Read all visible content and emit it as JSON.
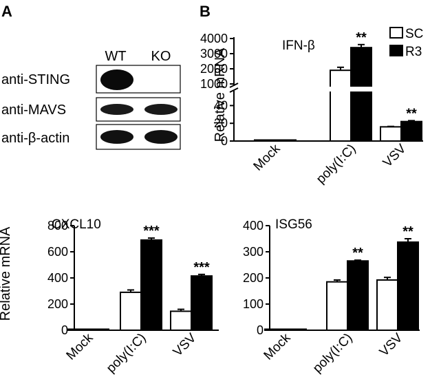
{
  "panels": {
    "a": {
      "letter": "A",
      "lanes": [
        "WT",
        "KO"
      ],
      "rows": [
        {
          "label": "anti-STING",
          "bands": [
            1.0,
            0.0
          ]
        },
        {
          "label": "anti-MAVS",
          "bands": [
            0.8,
            0.8
          ]
        },
        {
          "label": "anti-β-actin",
          "bands": [
            0.9,
            0.9
          ]
        }
      ]
    },
    "b": {
      "letter": "B"
    }
  },
  "chart_data": [
    {
      "type": "bar",
      "title": "IFN-β",
      "ylabel": "Relative mRNA",
      "categories": [
        "Mock",
        "poly(I:C)",
        "VSV"
      ],
      "series": [
        {
          "name": "SC",
          "values": [
            1,
            1900,
            16
          ],
          "errors": [
            0,
            200,
            0.5
          ],
          "color": "#ffffff"
        },
        {
          "name": "R3",
          "values": [
            1,
            3400,
            22
          ],
          "errors": [
            0,
            200,
            1
          ],
          "color": "#000000"
        }
      ],
      "broken_axis": true,
      "lower_ticks": [
        0,
        20,
        40
      ],
      "upper_ticks": [
        1000,
        2000,
        3000,
        4000
      ],
      "significance": [
        null,
        "**",
        "**"
      ],
      "legend": {
        "position": "top-right",
        "entries": [
          "SC",
          "R3"
        ]
      }
    },
    {
      "type": "bar",
      "title": "CXCL10",
      "ylabel": "Relative mRNA",
      "categories": [
        "Mock",
        "poly(I:C)",
        "VSV"
      ],
      "series": [
        {
          "name": "SC",
          "values": [
            1,
            290,
            145
          ],
          "errors": [
            0,
            18,
            15
          ],
          "color": "#ffffff"
        },
        {
          "name": "R3",
          "values": [
            1,
            690,
            415
          ],
          "errors": [
            0,
            15,
            12
          ],
          "color": "#000000"
        }
      ],
      "ylim": [
        0,
        800
      ],
      "yticks": [
        0,
        200,
        400,
        600,
        800
      ],
      "significance": [
        null,
        "***",
        "***"
      ]
    },
    {
      "type": "bar",
      "title": "ISG56",
      "ylabel": "",
      "categories": [
        "Mock",
        "poly(I:C)",
        "VSV"
      ],
      "series": [
        {
          "name": "SC",
          "values": [
            1,
            185,
            192
          ],
          "errors": [
            0,
            7,
            10
          ],
          "color": "#ffffff"
        },
        {
          "name": "R3",
          "values": [
            1,
            265,
            337
          ],
          "errors": [
            0,
            3,
            13
          ],
          "color": "#000000"
        }
      ],
      "ylim": [
        0,
        400
      ],
      "yticks": [
        0,
        100,
        200,
        300,
        400
      ],
      "significance": [
        null,
        "**",
        "**"
      ]
    }
  ]
}
